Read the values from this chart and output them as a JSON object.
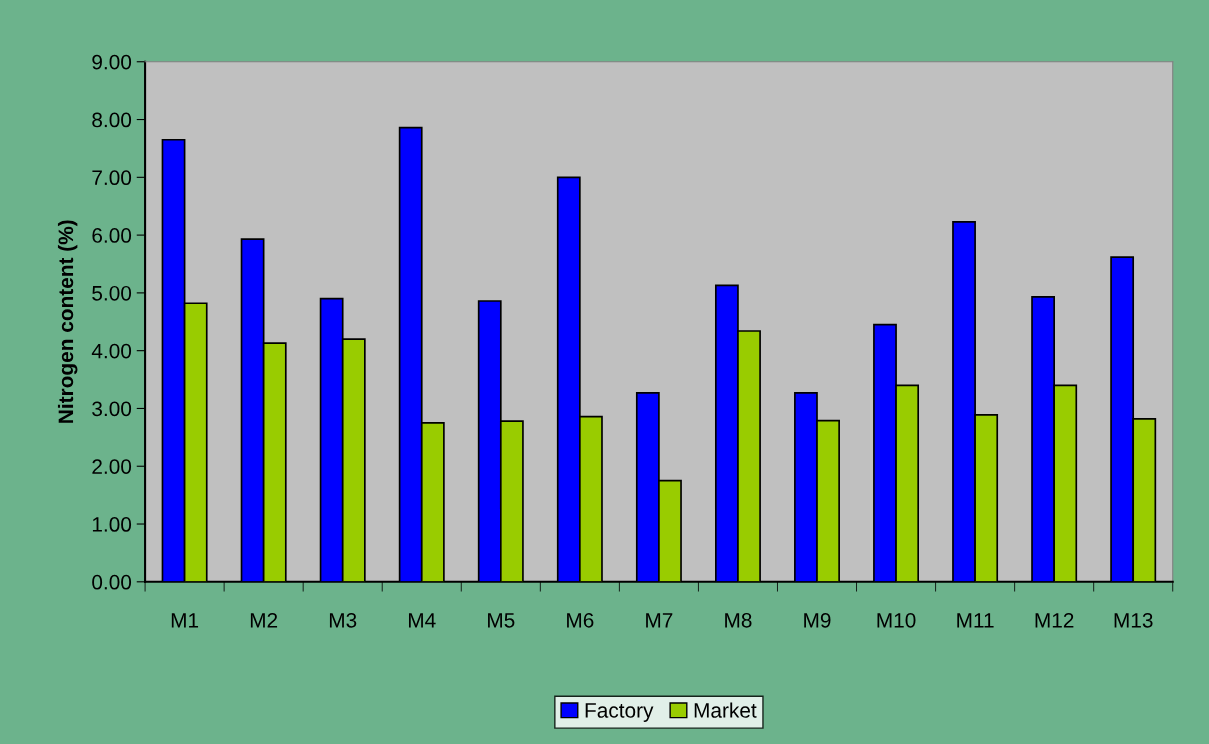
{
  "chart_data": {
    "type": "bar",
    "ylabel": "Nitrogen content (%)",
    "categories": [
      "M1",
      "M2",
      "M3",
      "M4",
      "M5",
      "M6",
      "M7",
      "M8",
      "M9",
      "M10",
      "M11",
      "M12",
      "M13"
    ],
    "series": [
      {
        "name": "Factory",
        "color": "#0000ff",
        "values": [
          7.65,
          5.93,
          4.9,
          7.86,
          4.86,
          7.0,
          3.27,
          5.13,
          3.27,
          4.45,
          6.23,
          4.93,
          5.62
        ]
      },
      {
        "name": "Market",
        "color": "#99cc00",
        "values": [
          4.82,
          4.13,
          4.2,
          2.75,
          2.78,
          2.86,
          1.75,
          4.34,
          2.79,
          3.4,
          2.89,
          3.4,
          2.82
        ]
      }
    ],
    "ylim": [
      0,
      9
    ],
    "yticks": [
      {
        "value": 0,
        "label": "0.00"
      },
      {
        "value": 1,
        "label": "1.00"
      },
      {
        "value": 2,
        "label": "2.00"
      },
      {
        "value": 3,
        "label": "3.00"
      },
      {
        "value": 4,
        "label": "4.00"
      },
      {
        "value": 5,
        "label": "5.00"
      },
      {
        "value": 6,
        "label": "6.00"
      },
      {
        "value": 7,
        "label": "7.00"
      },
      {
        "value": 8,
        "label": "8.00"
      },
      {
        "value": 9,
        "label": "9.00"
      }
    ],
    "grid": false,
    "legend": "bottom"
  }
}
